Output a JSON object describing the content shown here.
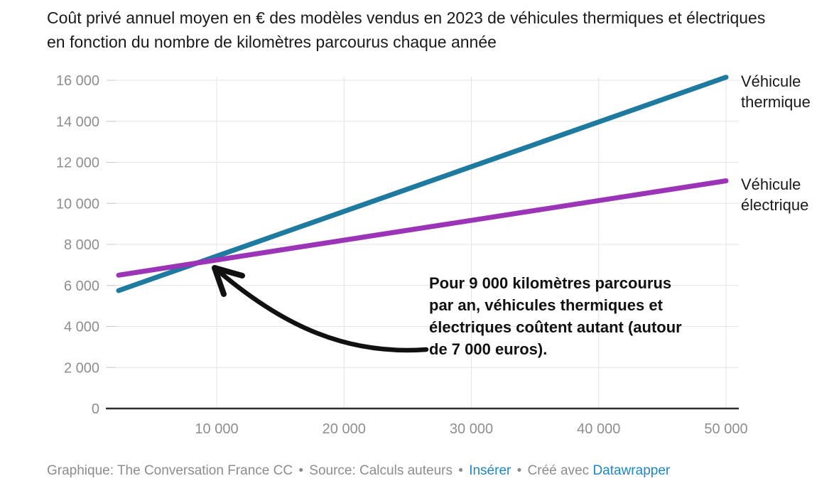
{
  "title": "Coût privé annuel moyen en € des modèles vendus en 2023 de véhicules thermiques et électriques en fonction du nombre de kilomètres parcourus chaque année",
  "colors": {
    "thermique_line": "#1f7aa0",
    "electrique_line": "#9c34b7",
    "grid": "#e4e4e4",
    "grid_tick_stub": "#c9c9c9",
    "axis": "#2e2e2e",
    "tick_text": "#8e8e8e",
    "dark_text": "#1a1a1a",
    "arrow": "#111111",
    "footer_text": "#8c8c8c",
    "link_blue": "#1d87c9"
  },
  "chart_data": {
    "type": "line",
    "title": "Coût privé annuel moyen en € des modèles vendus en 2023 de véhicules thermiques et électriques en fonction du nombre de kilomètres parcourus chaque année",
    "xlabel": "",
    "ylabel": "",
    "xlim": [
      2300,
      50000
    ],
    "ylim": [
      0,
      16000
    ],
    "grid": true,
    "legend_position": "right-of-line-ends",
    "x_ticks": [
      {
        "value": 10000,
        "label": "10 000"
      },
      {
        "value": 20000,
        "label": "20 000"
      },
      {
        "value": 30000,
        "label": "30 000"
      },
      {
        "value": 40000,
        "label": "40 000"
      },
      {
        "value": 50000,
        "label": "50 000"
      }
    ],
    "y_ticks": [
      {
        "value": 0,
        "label": "0"
      },
      {
        "value": 2000,
        "label": "2 000"
      },
      {
        "value": 4000,
        "label": "4 000"
      },
      {
        "value": 6000,
        "label": "6 000"
      },
      {
        "value": 8000,
        "label": "8 000"
      },
      {
        "value": 10000,
        "label": "10 000"
      },
      {
        "value": 12000,
        "label": "12 000"
      },
      {
        "value": 14000,
        "label": "14 000"
      },
      {
        "value": 16000,
        "label": "16 000"
      }
    ],
    "series": [
      {
        "name": "Véhicule thermique",
        "color": "#1f7aa0",
        "points": [
          [
            2300,
            5750
          ],
          [
            50000,
            16150
          ]
        ]
      },
      {
        "name": "Véhicule électrique",
        "color": "#9c34b7",
        "points": [
          [
            2300,
            6500
          ],
          [
            50000,
            11100
          ]
        ]
      }
    ],
    "annotation": {
      "text": "Pour 9 000 kilomètres parcourus par an, véhicules thermiques et électriques coûtent autant (autour de 7 000 euros).",
      "lines": [
        "Pour 9 000 kilomètres parcourus",
        "par an, véhicules thermiques et",
        "électriques coûtent autant (autour",
        "de 7 000 euros)."
      ],
      "arrow_points_to": {
        "km": 9000,
        "eur": 7000
      }
    }
  },
  "footer": {
    "credit": "Graphique: The Conversation France CC",
    "sep": "•",
    "source": "Source: Calculs auteurs",
    "embed_label": "Insérer",
    "created_with": "Créé avec",
    "datawrapper_label": "Datawrapper"
  }
}
